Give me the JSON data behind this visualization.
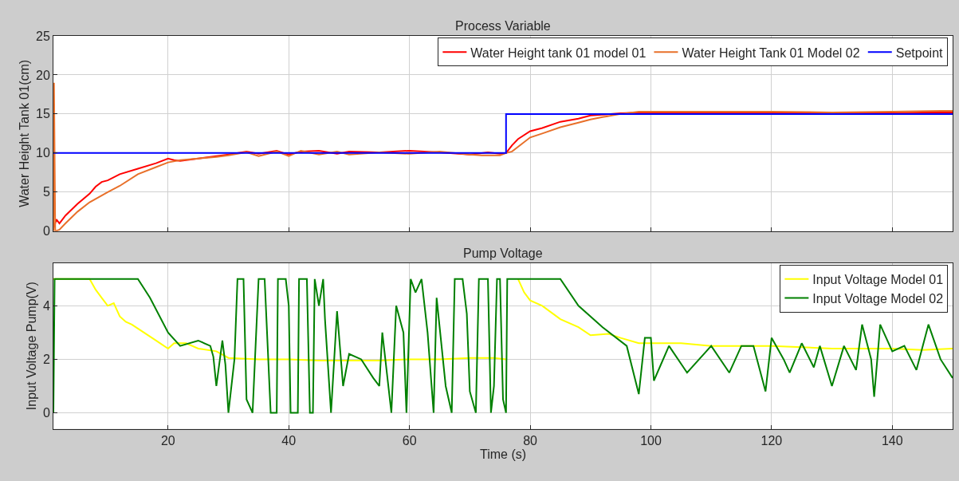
{
  "chart_data": [
    {
      "type": "line",
      "title": "Process Variable",
      "ylabel": "Water Height Tank 01(cm)",
      "xlim": [
        1,
        150
      ],
      "xticks": [
        20,
        40,
        60,
        80,
        100,
        120,
        140
      ],
      "ylim": [
        0,
        25
      ],
      "yticks": [
        0,
        5,
        10,
        15,
        20,
        25
      ],
      "tick_labels": "y",
      "grid": true,
      "legend": "top right",
      "series": [
        {
          "name": "Water Height tank 01 model 01",
          "color": "#ff0000",
          "x": [
            1,
            1.5,
            2,
            3,
            5,
            7,
            8,
            9,
            10,
            12,
            15,
            18,
            20,
            21,
            22,
            25,
            30,
            33,
            35,
            38,
            40,
            42,
            45,
            48,
            50,
            55,
            60,
            65,
            70,
            73,
            75,
            76,
            77,
            78,
            80,
            82,
            85,
            88,
            90,
            92,
            95,
            98,
            100,
            110,
            120,
            130,
            140,
            145,
            150
          ],
          "values": [
            0.3,
            1.5,
            1,
            2,
            3.5,
            4.8,
            5.7,
            6.3,
            6.5,
            7.3,
            8,
            8.7,
            9.3,
            9.1,
            9,
            9.3,
            9.8,
            10.2,
            9.9,
            10.3,
            9.8,
            10.2,
            10.3,
            9.9,
            10.2,
            10.1,
            10.3,
            10.1,
            9.8,
            10.1,
            9.9,
            10,
            11,
            11.8,
            12.8,
            13.2,
            14,
            14.4,
            14.8,
            14.9,
            15.1,
            15.2,
            15.1,
            15.2,
            15.2,
            15.2,
            15.1,
            15.2,
            15.2
          ]
        },
        {
          "name": "Water Height Tank 01 Model 02",
          "color": "#e8702a",
          "x": [
            1,
            1.1,
            1.3,
            2,
            3,
            5,
            7,
            10,
            12,
            15,
            18,
            20,
            22,
            25,
            28,
            30,
            33,
            35,
            38,
            40,
            42,
            45,
            48,
            50,
            55,
            60,
            65,
            70,
            72,
            75,
            76,
            77,
            78,
            80,
            82,
            85,
            88,
            90,
            92,
            95,
            98,
            100,
            110,
            120,
            130,
            140,
            148,
            150
          ],
          "values": [
            0,
            19,
            0,
            0.2,
            1,
            2.5,
            3.7,
            5,
            5.8,
            7.3,
            8.2,
            8.8,
            9.1,
            9.3,
            9.5,
            9.7,
            10.1,
            9.6,
            10.2,
            9.6,
            10.3,
            9.8,
            10.2,
            9.8,
            10.1,
            9.9,
            10.2,
            9.8,
            9.7,
            9.7,
            10,
            10.2,
            10.8,
            12,
            12.5,
            13.3,
            13.9,
            14.3,
            14.6,
            15,
            15.3,
            15.3,
            15.3,
            15.3,
            15.2,
            15.3,
            15.4,
            15.4
          ]
        },
        {
          "name": "Setpoint",
          "color": "#0000ff",
          "x": [
            1,
            76,
            76,
            150
          ],
          "values": [
            10,
            10,
            15,
            15
          ]
        }
      ]
    },
    {
      "type": "line",
      "title": "Pump Voltage",
      "xlabel": "Time (s)",
      "ylabel": "Input Voltage Pump(V)",
      "xlim": [
        1,
        150
      ],
      "xticks": [
        20,
        40,
        60,
        80,
        100,
        120,
        140
      ],
      "ylim": [
        -0.6,
        5.6
      ],
      "yticks": [
        0,
        2,
        4
      ],
      "grid": true,
      "legend": "top right",
      "series": [
        {
          "name": "Input Voltage Model 01",
          "color": "#ffff00",
          "x": [
            1,
            7,
            8,
            9,
            10,
            11,
            12,
            13,
            14,
            16,
            18,
            20,
            21,
            23,
            25,
            28,
            30,
            35,
            40,
            45,
            50,
            55,
            60,
            65,
            70,
            74,
            76,
            null,
            78,
            79,
            80,
            82,
            85,
            88,
            90,
            93,
            95,
            98,
            100,
            105,
            110,
            115,
            120,
            125,
            130,
            135,
            140,
            145,
            150
          ],
          "values": [
            5,
            5,
            4.6,
            4.3,
            4,
            4.1,
            3.6,
            3.4,
            3.3,
            3,
            2.7,
            2.4,
            2.6,
            2.6,
            2.4,
            2.3,
            2.05,
            2,
            2,
            1.95,
            1.95,
            1.95,
            2,
            2,
            2.05,
            2.05,
            2,
            null,
            5,
            4.5,
            4.2,
            4,
            3.5,
            3.2,
            2.9,
            2.95,
            2.8,
            2.6,
            2.6,
            2.6,
            2.5,
            2.5,
            2.5,
            2.45,
            2.4,
            2.4,
            2.4,
            2.35,
            2.4
          ]
        },
        {
          "name": "Input Voltage Model 02",
          "color": "#008000",
          "x": [
            1,
            1.2,
            15,
            17,
            20,
            22,
            25,
            27,
            27.5,
            28,
            29,
            29.5,
            30,
            31,
            31.5,
            32.5,
            33,
            34,
            35,
            36,
            37,
            38,
            38.2,
            39.5,
            40,
            40.3,
            41.5,
            41.7,
            43,
            43.5,
            44,
            44.3,
            45,
            45.7,
            46,
            47,
            48,
            49,
            50,
            52,
            54,
            55,
            55.5,
            57,
            57.8,
            59,
            59.5,
            60.2,
            61,
            62,
            63,
            64,
            64.5,
            66,
            67,
            67.5,
            68.8,
            69.5,
            70,
            71,
            71.5,
            73,
            73.5,
            74,
            74.5,
            75,
            75.5,
            76,
            76.2,
            85,
            88,
            92,
            96,
            98,
            99,
            100,
            100.5,
            103,
            106,
            108,
            110,
            113,
            115,
            117,
            119,
            120,
            122,
            123,
            125,
            127,
            128,
            130,
            132,
            134,
            135,
            136.5,
            137,
            138,
            140,
            142,
            144,
            146,
            148,
            150
          ],
          "values": [
            0,
            5,
            5,
            4.3,
            3,
            2.5,
            2.7,
            2.5,
            2.1,
            1,
            2.7,
            1.8,
            0,
            2,
            5,
            5,
            0.5,
            0,
            5,
            5,
            0,
            0,
            5,
            5,
            4,
            0,
            0,
            5,
            5,
            0,
            0,
            5,
            4,
            5,
            3.5,
            0,
            3.8,
            1,
            2.2,
            2,
            1.3,
            1,
            3,
            0,
            4,
            3,
            0,
            5,
            4.5,
            5,
            3,
            0,
            4.3,
            1,
            0,
            5,
            5,
            3.7,
            0.8,
            0,
            5,
            5,
            0,
            1,
            5,
            5,
            0.5,
            0,
            5,
            5,
            4,
            3.2,
            2.5,
            0.7,
            2.8,
            2.8,
            1.2,
            2.5,
            1.5,
            2,
            2.5,
            1.5,
            2.5,
            2.5,
            0.8,
            2.8,
            2,
            1.5,
            2.6,
            1.7,
            2.5,
            1,
            2.5,
            1.6,
            3.3,
            2,
            0.6,
            3.3,
            2.3,
            2.5,
            1.6,
            3.3,
            2,
            1.3
          ]
        }
      ]
    }
  ]
}
